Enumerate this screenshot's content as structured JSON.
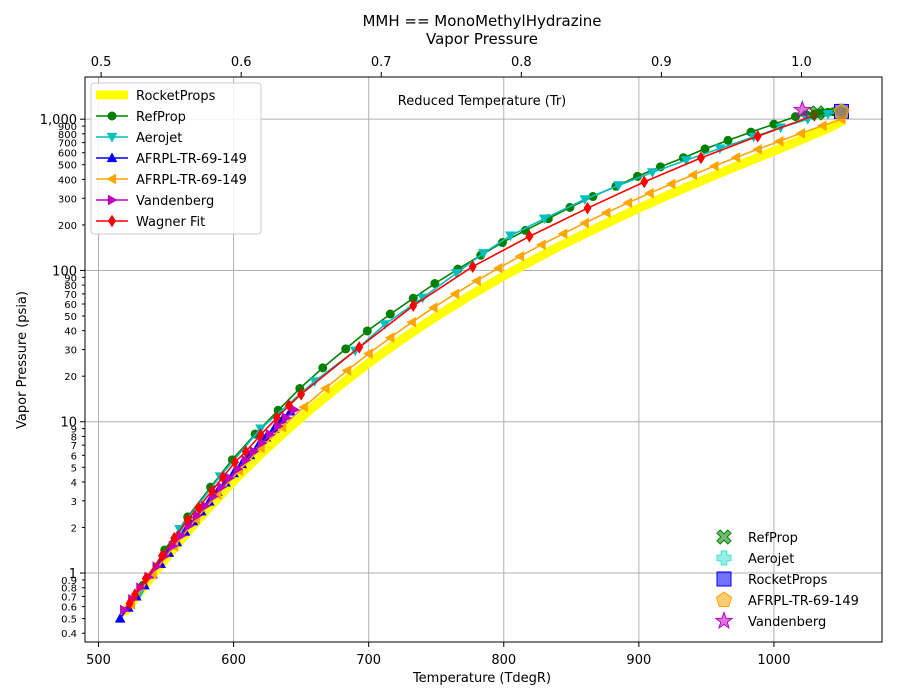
{
  "chart_data": {
    "type": "line",
    "title": "MMH == MonoMethylHydrazine",
    "subtitle": "Vapor Pressure",
    "xlabel": "Temperature (TdegR)",
    "ylabel": "Vapor Pressure (psia)",
    "top_xlabel": "Reduced Temperature (Tr)",
    "xlim": [
      490,
      1080
    ],
    "ylim": [
      0.35,
      1900
    ],
    "yscale": "log",
    "grid": true,
    "x_ticks": [
      "500",
      "600",
      "700",
      "800",
      "900",
      "1000"
    ],
    "top_ticks": [
      "0.5",
      "0.6",
      "0.7",
      "0.8",
      "0.9",
      "1.0"
    ],
    "y_major_ticks": [
      "1",
      "10",
      "100",
      "1,000"
    ],
    "y_minor_ticks": [
      "0.4",
      "0.5",
      "0.6",
      "0.7",
      "0.8",
      "0.9",
      "2",
      "3",
      "4",
      "5",
      "6",
      "7",
      "8",
      "9",
      "20",
      "30",
      "40",
      "50",
      "60",
      "70",
      "80",
      "90",
      "200",
      "300",
      "400",
      "500",
      "600",
      "700",
      "800",
      "900"
    ],
    "legend_lines_position": "top-left",
    "legend_markers_position": "bottom-right",
    "series": [
      {
        "name": "RocketProps",
        "color": "#ffff00",
        "marker": "none",
        "line": "thick",
        "x": [
          520,
          540,
          560,
          580,
          600,
          620,
          640,
          660,
          680,
          700,
          720,
          740,
          760,
          780,
          800,
          820,
          840,
          860,
          880,
          900,
          920,
          940,
          960,
          980,
          1000,
          1020,
          1040,
          1050
        ],
        "y": [
          0.56,
          0.97,
          1.62,
          2.6,
          4.05,
          6.1,
          8.9,
          12.7,
          17.8,
          24.4,
          32.8,
          43.4,
          56.5,
          72.5,
          92,
          115,
          143,
          175,
          213,
          258,
          310,
          370,
          440,
          520,
          615,
          730,
          870,
          965
        ]
      },
      {
        "name": "RefProp",
        "color": "#008000",
        "marker": "circle",
        "line": "solid",
        "x": [
          533,
          549,
          566,
          583,
          599,
          616,
          633,
          649,
          666,
          683,
          699,
          716,
          733,
          749,
          766,
          783,
          799,
          816,
          833,
          849,
          866,
          883,
          899,
          916,
          933,
          949,
          966,
          983,
          1000,
          1016,
          1024,
          1030,
          1033,
          1036,
          1040,
          1044,
          1050
        ],
        "y": [
          0.83,
          1.42,
          2.35,
          3.7,
          5.6,
          8.3,
          11.9,
          16.6,
          22.7,
          30.3,
          39.8,
          51.5,
          65.5,
          82,
          102,
          126,
          153,
          184,
          220,
          261,
          308,
          360,
          419,
          484,
          556,
          636,
          724,
          821,
          927,
          1040,
          1070,
          1080,
          1090,
          1100,
          1110,
          1120,
          1125
        ]
      },
      {
        "name": "Aerojet",
        "color": "#00bfbf",
        "marker": "tri-down",
        "line": "solid",
        "x": [
          530,
          560,
          590,
          620,
          660,
          690,
          712,
          740,
          765,
          785,
          805,
          830,
          860,
          885,
          910,
          935,
          960,
          985,
          1005,
          1025,
          1040,
          1048
        ],
        "y": [
          0.72,
          1.95,
          4.35,
          9.0,
          18.5,
          29.5,
          44,
          66,
          96,
          130,
          170,
          220,
          295,
          365,
          445,
          535,
          640,
          765,
          880,
          1000,
          1080,
          1120
        ]
      },
      {
        "name": "AFRPL-TR-69-149",
        "color": "#0000ff",
        "marker": "tri-up",
        "line": "solid",
        "x": [
          516,
          522,
          528,
          534,
          540,
          546,
          552,
          558,
          564,
          570,
          576,
          582,
          588,
          594,
          600,
          606,
          612,
          618,
          624,
          630,
          636,
          642
        ],
        "y": [
          0.5,
          0.59,
          0.7,
          0.83,
          0.98,
          1.15,
          1.36,
          1.6,
          1.88,
          2.2,
          2.56,
          2.97,
          3.44,
          3.97,
          4.57,
          5.25,
          6.02,
          6.9,
          7.9,
          9.0,
          10.3,
          11.7
        ]
      },
      {
        "name": "AFRPL-TR-69-149",
        "color": "#ffa500",
        "marker": "tri-left",
        "line": "solid",
        "x": [
          524,
          540,
          556,
          572,
          588,
          604,
          620,
          636,
          652,
          668,
          684,
          700,
          716,
          732,
          748,
          764,
          780,
          796,
          812,
          828,
          844,
          860,
          876,
          892,
          908,
          924,
          940,
          956,
          972,
          988,
          1004,
          1020,
          1036,
          1050
        ],
        "y": [
          0.62,
          0.98,
          1.5,
          2.27,
          3.3,
          4.75,
          6.7,
          9.2,
          12.5,
          16.6,
          21.8,
          28.2,
          36,
          45.5,
          56.8,
          70,
          85.5,
          103.5,
          124,
          148,
          175,
          206,
          241,
          280,
          324,
          373,
          428,
          490,
          558,
          632,
          714,
          806,
          905,
          1000
        ]
      },
      {
        "name": "Vandenberg",
        "color": "#bf00bf",
        "marker": "tri-right",
        "line": "solid",
        "x": [
          519,
          525,
          531,
          537,
          543,
          549,
          555,
          561,
          567,
          573,
          579,
          585,
          591,
          597,
          603,
          609,
          615,
          621,
          627,
          633,
          639,
          645
        ],
        "y": [
          0.57,
          0.67,
          0.8,
          0.94,
          1.1,
          1.29,
          1.51,
          1.76,
          2.05,
          2.39,
          2.77,
          3.2,
          3.69,
          4.24,
          4.86,
          5.56,
          6.35,
          7.24,
          8.24,
          9.35,
          10.6,
          12.0
        ]
      },
      {
        "name": "Wagner Fit",
        "color": "#ff0000",
        "marker": "diamond",
        "line": "solid",
        "x": [
          523,
          527,
          535,
          547,
          556,
          566,
          574,
          584,
          592,
          601,
          609,
          620,
          632,
          641,
          650,
          693,
          733,
          777,
          819,
          862,
          904,
          946,
          988,
          1030
        ],
        "y": [
          0.63,
          0.72,
          0.92,
          1.3,
          1.7,
          2.25,
          2.7,
          3.5,
          4.3,
          5.4,
          6.35,
          8.2,
          10.6,
          12.8,
          15.2,
          31,
          58.5,
          106,
          168,
          258,
          385,
          555,
          770,
          1060
        ]
      }
    ],
    "critical_points": [
      {
        "name": "RefProp",
        "color": "#008000",
        "marker": "x",
        "x": 1032,
        "y": 1100
      },
      {
        "name": "Aerojet",
        "color": "#40e0d0",
        "marker": "plus",
        "x": 1050,
        "y": 1130
      },
      {
        "name": "RocketProps",
        "color": "#0000ff",
        "marker": "square",
        "x": 1050,
        "y": 1125
      },
      {
        "name": "AFRPL-TR-69-149",
        "color": "#ffa500",
        "marker": "pentagon",
        "x": 1050,
        "y": 1120
      },
      {
        "name": "Vandenberg",
        "color": "#bf00bf",
        "marker": "star",
        "x": 1021,
        "y": 1150
      }
    ]
  }
}
